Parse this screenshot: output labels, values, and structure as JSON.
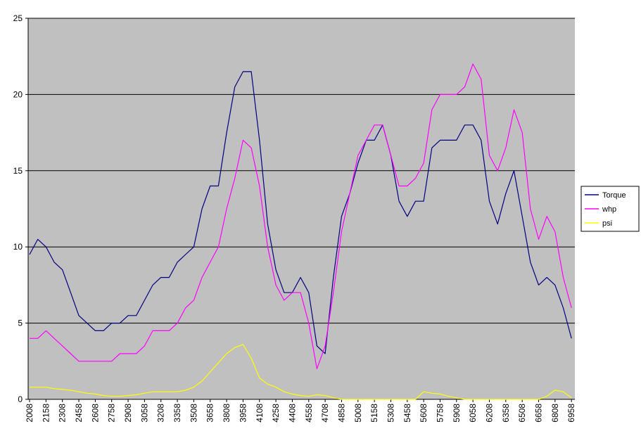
{
  "chart_data": {
    "type": "line",
    "x": [
      2008,
      2083,
      2158,
      2233,
      2308,
      2383,
      2458,
      2533,
      2608,
      2683,
      2758,
      2833,
      2908,
      2983,
      3058,
      3133,
      3208,
      3283,
      3358,
      3433,
      3508,
      3583,
      3658,
      3733,
      3808,
      3883,
      3958,
      4033,
      4108,
      4183,
      4258,
      4333,
      4408,
      4483,
      4558,
      4633,
      4708,
      4783,
      4858,
      4933,
      5008,
      5083,
      5158,
      5233,
      5308,
      5383,
      5458,
      5533,
      5608,
      5683,
      5758,
      5833,
      5908,
      5983,
      6058,
      6133,
      6208,
      6283,
      6358,
      6433,
      6508,
      6583,
      6658,
      6733,
      6808,
      6883,
      6958
    ],
    "xlim": [
      1995,
      6989
    ],
    "xticks": [
      2008,
      2158,
      2308,
      2458,
      2608,
      2758,
      2908,
      3058,
      3208,
      3358,
      3508,
      3658,
      3808,
      3958,
      4108,
      4258,
      4408,
      4558,
      4708,
      4858,
      5008,
      5158,
      5308,
      5458,
      5608,
      5758,
      5908,
      6058,
      6208,
      6358,
      6508,
      6658,
      6808,
      6958
    ],
    "ylim": [
      0,
      25
    ],
    "yticks": [
      0,
      5,
      10,
      15,
      20,
      25
    ],
    "grid": true,
    "legend": "right",
    "background": "#c0c0c0",
    "series": [
      {
        "name": "Torque",
        "color": "#000080",
        "values": [
          9.5,
          10.5,
          10,
          9,
          8.5,
          7,
          5.5,
          5,
          4.5,
          4.5,
          5,
          5,
          5.5,
          5.5,
          6.5,
          7.5,
          8,
          8,
          9,
          9.5,
          10,
          12.5,
          14,
          14,
          17.5,
          20.5,
          21.5,
          21.5,
          17,
          11.5,
          8.5,
          7,
          7,
          8,
          7,
          3.5,
          3,
          8,
          12,
          13.5,
          15.5,
          17,
          17,
          18,
          16,
          13,
          12,
          13,
          13,
          16.5,
          17,
          17,
          17,
          18,
          18,
          17,
          13,
          11.5,
          13.5,
          15,
          12,
          9,
          7.5,
          8,
          7.5,
          6,
          4
        ]
      },
      {
        "name": "whp",
        "color": "#ff00ff",
        "values": [
          4,
          4,
          4.5,
          4,
          3.5,
          3,
          2.5,
          2.5,
          2.5,
          2.5,
          2.5,
          3,
          3,
          3,
          3.5,
          4.5,
          4.5,
          4.5,
          5,
          6,
          6.5,
          8,
          9,
          10,
          12.5,
          14.5,
          17,
          16.5,
          14,
          10,
          7.5,
          6.5,
          7,
          7,
          5,
          2,
          3.5,
          7,
          11,
          13.5,
          16,
          17,
          18,
          18,
          16,
          14,
          14,
          14.5,
          15.5,
          19,
          20,
          20,
          20,
          20.5,
          22,
          21,
          16,
          15,
          16.5,
          19,
          17.5,
          12.5,
          10.5,
          12,
          11,
          8,
          6
        ]
      },
      {
        "name": "psi",
        "color": "#ffff00",
        "values": [
          0.8,
          0.8,
          0.8,
          0.7,
          0.65,
          0.6,
          0.5,
          0.4,
          0.35,
          0.25,
          0.2,
          0.2,
          0.25,
          0.3,
          0.4,
          0.5,
          0.5,
          0.5,
          0.5,
          0.6,
          0.8,
          1.2,
          1.8,
          2.4,
          3,
          3.4,
          3.6,
          2.7,
          1.4,
          1,
          0.8,
          0.5,
          0.35,
          0.25,
          0.2,
          0.3,
          0.25,
          0.1,
          0,
          0,
          0,
          0,
          0,
          0,
          0,
          0,
          0,
          0,
          0.5,
          0.4,
          0.35,
          0.2,
          0.1,
          0,
          0,
          0,
          0,
          0,
          0,
          0,
          0,
          0,
          0,
          0.2,
          0.6,
          0.5,
          0.1
        ]
      }
    ]
  }
}
